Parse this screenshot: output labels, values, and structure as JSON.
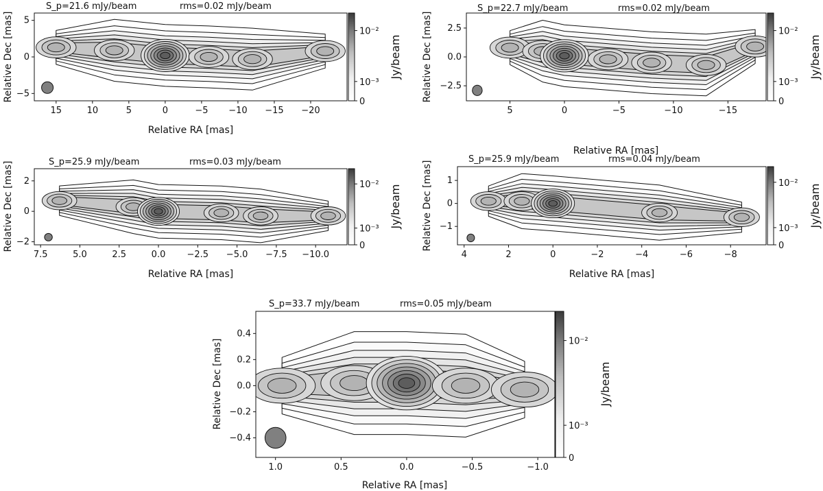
{
  "figure": {
    "colorbar_label": "Jy/beam",
    "xlabel": "Relative RA [mas]",
    "ylabel": "Relative Dec [mas]"
  },
  "chart_data": [
    {
      "type": "heatmap",
      "peak_label": "S_p=21.6 mJy/beam",
      "rms_label": "rms=0.02 mJy/beam",
      "xlabel": "Relative RA [mas]",
      "ylabel": "Relative Dec [mas]",
      "xlim": [
        18,
        -25
      ],
      "ylim": [
        -6,
        6
      ],
      "xticks": [
        15,
        10,
        5,
        0,
        -5,
        -10,
        -15,
        -20
      ],
      "xticklabels": [
        "15",
        "10",
        "5",
        "0",
        "−5",
        "−10",
        "−15",
        "−20"
      ],
      "yticks": [
        5,
        0,
        -5
      ],
      "yticklabels": [
        "5",
        "0",
        "−5"
      ],
      "colorbar_ticks": [
        "10⁻²",
        "10⁻³",
        "0"
      ],
      "colorbar_label": "Jy/beam",
      "peak_mJy_per_beam": 21.6,
      "rms_mJy_per_beam": 0.02,
      "beam": {
        "x": 16.2,
        "y": -4.2,
        "r": 0.8
      },
      "core": {
        "x": 0,
        "y": 0
      },
      "jet_extent_mas": [
        16,
        -23
      ],
      "components": [
        {
          "x": 15,
          "y": 1.3
        },
        {
          "x": 7,
          "y": 0.9
        },
        {
          "x": 0,
          "y": 0.2
        },
        {
          "x": -6,
          "y": 0.0
        },
        {
          "x": -12,
          "y": -0.3
        },
        {
          "x": -22,
          "y": 0.8
        }
      ]
    },
    {
      "type": "heatmap",
      "peak_label": "S_p=22.7 mJy/beam",
      "rms_label": "rms=0.02 mJy/beam",
      "xlabel": "Relative RA [mas]",
      "ylabel": "Relative Dec [mas]",
      "xlim": [
        9,
        -18.5
      ],
      "ylim": [
        -3.8,
        3.8
      ],
      "xticks": [
        5,
        0,
        -5,
        -10,
        -15
      ],
      "xticklabels": [
        "5",
        "0",
        "−5",
        "−10",
        "−15"
      ],
      "yticks": [
        2.5,
        0.0,
        -2.5
      ],
      "yticklabels": [
        "2.5",
        "0.0",
        "−2.5"
      ],
      "colorbar_ticks": [
        "10⁻²",
        "10⁻³",
        "0"
      ],
      "colorbar_label": "Jy/beam",
      "peak_mJy_per_beam": 22.7,
      "rms_mJy_per_beam": 0.02,
      "beam": {
        "x": 8,
        "y": -2.9,
        "r": 0.45
      },
      "core": {
        "x": 0,
        "y": 0
      },
      "jet_extent_mas": [
        8,
        -17.5
      ],
      "components": [
        {
          "x": 5,
          "y": 0.8
        },
        {
          "x": 2,
          "y": 0.5
        },
        {
          "x": 0,
          "y": 0.1
        },
        {
          "x": -4,
          "y": -0.2
        },
        {
          "x": -8,
          "y": -0.5
        },
        {
          "x": -13,
          "y": -0.7
        },
        {
          "x": -17.5,
          "y": 0.9
        }
      ]
    },
    {
      "type": "heatmap",
      "peak_label": "S_p=25.9 mJy/beam",
      "rms_label": "rms=0.03 mJy/beam",
      "xlabel": "Relative RA [mas]",
      "ylabel": "Relative Dec [mas]",
      "xlim": [
        7.9,
        -12
      ],
      "ylim": [
        -2.2,
        2.8
      ],
      "xticks": [
        7.5,
        5.0,
        2.5,
        0.0,
        -2.5,
        -5.0,
        -7.5,
        -10.0
      ],
      "xticklabels": [
        "7.5",
        "5.0",
        "2.5",
        "0.0",
        "−2.5",
        "−5.0",
        "−7.5",
        "−10.0"
      ],
      "yticks": [
        2,
        0,
        -2
      ],
      "yticklabels": [
        "2",
        "0",
        "−2"
      ],
      "colorbar_ticks": [
        "10⁻²",
        "10⁻³",
        "0"
      ],
      "colorbar_label": "Jy/beam",
      "peak_mJy_per_beam": 25.9,
      "rms_mJy_per_beam": 0.03,
      "beam": {
        "x": 7.0,
        "y": -1.7,
        "r": 0.25
      },
      "core": {
        "x": 0,
        "y": 0
      },
      "jet_extent_mas": [
        3.5,
        -9.5
      ],
      "components": [
        {
          "x": 6.3,
          "y": 0.7
        },
        {
          "x": 1.6,
          "y": 0.3
        },
        {
          "x": 0,
          "y": 0
        },
        {
          "x": -4.0,
          "y": -0.1
        },
        {
          "x": -6.5,
          "y": -0.3
        },
        {
          "x": -10.8,
          "y": -0.3
        }
      ]
    },
    {
      "type": "heatmap",
      "peak_label": "S_p=25.9 mJy/beam",
      "rms_label": "rms=0.04 mJy/beam",
      "xlabel": "Relative RA [mas]",
      "ylabel": "Relative Dec [mas]",
      "xlim": [
        4.3,
        -9.6
      ],
      "ylim": [
        -1.8,
        1.6
      ],
      "xticks": [
        4,
        2,
        0,
        -2,
        -4,
        -6,
        -8
      ],
      "xticklabels": [
        "4",
        "2",
        "0",
        "−2",
        "−4",
        "−6",
        "−8"
      ],
      "yticks": [
        1,
        0,
        -1
      ],
      "yticklabels": [
        "1",
        "0",
        "−1"
      ],
      "colorbar_ticks": [
        "10⁻²",
        "10⁻³",
        "0"
      ],
      "colorbar_label": "Jy/beam",
      "peak_mJy_per_beam": 25.9,
      "rms_mJy_per_beam": 0.04,
      "beam": {
        "x": 3.7,
        "y": -1.5,
        "r": 0.17
      },
      "core": {
        "x": 0,
        "y": 0
      },
      "jet_extent_mas": [
        4.0,
        -9.0
      ],
      "components": [
        {
          "x": 2.9,
          "y": 0.1
        },
        {
          "x": 1.4,
          "y": 0.1
        },
        {
          "x": 0,
          "y": 0
        },
        {
          "x": -4.8,
          "y": -0.4
        },
        {
          "x": -8.5,
          "y": -0.6
        }
      ]
    },
    {
      "type": "heatmap",
      "peak_label": "S_p=33.7 mJy/beam",
      "rms_label": "rms=0.05 mJy/beam",
      "xlabel": "Relative RA [mas]",
      "ylabel": "Relative Dec [mas]",
      "xlim": [
        1.15,
        -1.13
      ],
      "ylim": [
        -0.55,
        0.57
      ],
      "xticks": [
        1.0,
        0.5,
        0.0,
        -0.5,
        -1.0
      ],
      "xticklabels": [
        "1.0",
        "0.5",
        "0.0",
        "−0.5",
        "−1.0"
      ],
      "yticks": [
        0.4,
        0.2,
        0.0,
        -0.2,
        -0.4
      ],
      "yticklabels": [
        "0.4",
        "0.2",
        "0.0",
        "−0.2",
        "−0.4"
      ],
      "colorbar_ticks": [
        "10⁻²",
        "10⁻³",
        "0"
      ],
      "colorbar_label": "Jy/beam",
      "peak_mJy_per_beam": 33.7,
      "rms_mJy_per_beam": 0.05,
      "beam": {
        "x": 1.0,
        "y": -0.4,
        "r": 0.08
      },
      "core": {
        "x": 0,
        "y": 0.02
      },
      "jet_extent_mas": [
        1.1,
        -1.07
      ],
      "components": [
        {
          "x": 0.95,
          "y": 0.0
        },
        {
          "x": 0.4,
          "y": 0.02
        },
        {
          "x": 0.0,
          "y": 0.02
        },
        {
          "x": -0.45,
          "y": 0.0
        },
        {
          "x": -0.9,
          "y": -0.03
        }
      ]
    }
  ]
}
